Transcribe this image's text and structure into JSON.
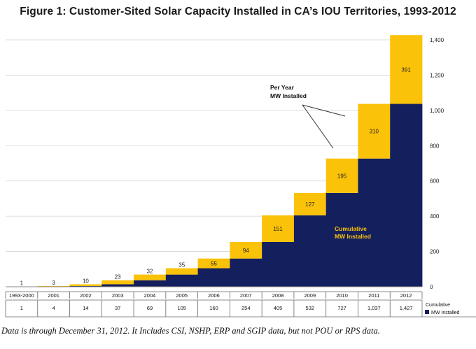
{
  "chart_data": {
    "type": "bar",
    "title": "Figure 1: Customer-Sited Solar Capacity Installed in CA’s IOU Territories, 1993-2012",
    "categories": [
      "1993-2000",
      "2001",
      "2002",
      "2003",
      "2004",
      "2005",
      "2006",
      "2007",
      "2008",
      "2009",
      "2010",
      "2011",
      "2012"
    ],
    "series": [
      {
        "name": "Cumulative MW Installed",
        "values": [
          1,
          4,
          14,
          37,
          69,
          105,
          160,
          254,
          405,
          532,
          727,
          1037,
          1427
        ]
      },
      {
        "name": "Per Year MW Installed",
        "values": [
          1,
          3,
          10,
          23,
          32,
          35,
          55,
          94,
          151,
          127,
          195,
          310,
          391
        ]
      }
    ],
    "cumulative_labels": [
      "1",
      "4",
      "14",
      "37",
      "69",
      "105",
      "160",
      "254",
      "405",
      "532",
      "727",
      "1,037",
      "1,427"
    ],
    "per_year_labels": [
      "1",
      "3",
      "10",
      "23",
      "32",
      "35",
      "55",
      "94",
      "151",
      "127",
      "195",
      "310",
      "391"
    ],
    "y_ticks": [
      0,
      200,
      400,
      600,
      800,
      1000,
      1200,
      1400
    ],
    "y_tick_labels": [
      "0",
      "200",
      "400",
      "600",
      "800",
      "1,000",
      "1,200",
      "1,400"
    ],
    "ylim": [
      0,
      1400
    ],
    "y_axis_side": "right",
    "grid": true,
    "annotations": {
      "per_year_line1": "Per Year",
      "per_year_line2": "MW Installed",
      "cumulative_line1": "Cumulative",
      "cumulative_line2": "MW Installed"
    },
    "table_row_label_line1": "Cumulative",
    "table_row_label_line2": "MW Installed",
    "colors": {
      "cumulative": "#14205e",
      "per_year": "#fbc20a",
      "annotation_text": "#fbc20a"
    }
  },
  "footnote": "Data is through December 31, 2012. It Includes CSI, NSHP, ERP and SGIP data, but not POU or RPS data."
}
